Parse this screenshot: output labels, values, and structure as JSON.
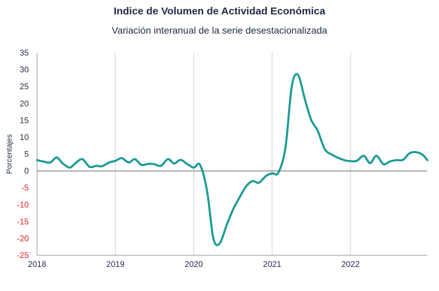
{
  "chart_data": {
    "type": "line",
    "title": "Indice de Volumen de  Actividad Económica",
    "subtitle": "Variación interanual de la serie desestacionalizada",
    "xlabel": "",
    "ylabel": "Porcentajes",
    "ylim": [
      -25,
      35
    ],
    "yticks": [
      35,
      30,
      25,
      20,
      15,
      10,
      5,
      0,
      -5,
      -10,
      -15,
      -20,
      -25
    ],
    "xlim": [
      2018.0,
      2022.98
    ],
    "xticks": [
      "2018",
      "2019",
      "2020",
      "2021",
      "2022"
    ],
    "grid": "vertical at years",
    "zero_line": true,
    "colors": {
      "line": "#1a9a96",
      "negative_tick": "#e02020",
      "positive_tick": "#1f2a44",
      "zero_line": "#777777",
      "grid": "#d0d0d0"
    },
    "series": [
      {
        "name": "",
        "x": [
          2018.0,
          2018.08,
          2018.17,
          2018.25,
          2018.33,
          2018.42,
          2018.5,
          2018.58,
          2018.67,
          2018.75,
          2018.83,
          2018.92,
          2019.0,
          2019.08,
          2019.17,
          2019.25,
          2019.33,
          2019.42,
          2019.5,
          2019.58,
          2019.67,
          2019.75,
          2019.83,
          2019.92,
          2020.0,
          2020.08,
          2020.17,
          2020.25,
          2020.33,
          2020.42,
          2020.5,
          2020.58,
          2020.67,
          2020.75,
          2020.83,
          2020.92,
          2021.0,
          2021.08,
          2021.17,
          2021.25,
          2021.33,
          2021.42,
          2021.5,
          2021.58,
          2021.67,
          2021.75,
          2021.83,
          2021.92,
          2022.0,
          2022.08,
          2022.17,
          2022.25,
          2022.33,
          2022.42,
          2022.5,
          2022.58,
          2022.67,
          2022.75,
          2022.83,
          2022.92,
          2022.98
        ],
        "y": [
          3.2,
          2.8,
          2.5,
          4.0,
          2.2,
          1.0,
          2.5,
          3.5,
          1.2,
          1.5,
          1.4,
          2.5,
          3.0,
          3.8,
          2.5,
          3.5,
          1.8,
          2.1,
          2.0,
          1.5,
          3.5,
          2.2,
          3.3,
          2.0,
          1.0,
          1.8,
          -6.0,
          -20.0,
          -21.5,
          -16.0,
          -11.5,
          -8.0,
          -4.5,
          -3.0,
          -3.5,
          -1.5,
          -0.7,
          -0.5,
          7.0,
          25.0,
          28.5,
          21.0,
          15.0,
          12.0,
          6.5,
          5.0,
          4.0,
          3.2,
          2.9,
          3.0,
          4.5,
          2.3,
          4.5,
          2.0,
          2.8,
          3.2,
          3.3,
          5.2,
          5.6,
          4.8,
          3.2
        ]
      }
    ]
  }
}
